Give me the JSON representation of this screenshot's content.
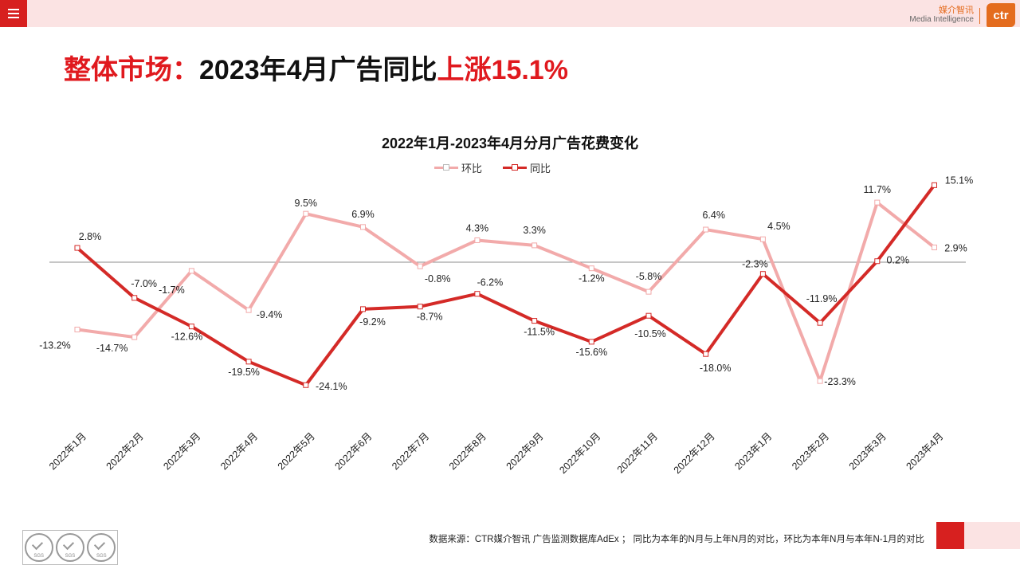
{
  "brand": {
    "cn": "媒介智讯",
    "en": "Media Intelligence",
    "logo_text": "ctr"
  },
  "title": {
    "prefix": "整体市场：",
    "main": "2023年4月广告同比",
    "highlight": "上涨15.1%"
  },
  "colors": {
    "accent": "#d7201f",
    "mom_line": "#f2aaaa",
    "yoy_line": "#d42a27",
    "title_red": "#e0191e"
  },
  "chart_data": {
    "type": "line",
    "title": "2022年1月-2023年4月分月广告花费变化",
    "categories": [
      "2022年1月",
      "2022年2月",
      "2022年3月",
      "2022年4月",
      "2022年5月",
      "2022年6月",
      "2022年7月",
      "2022年8月",
      "2022年9月",
      "2022年10月",
      "2022年11月",
      "2022年12月",
      "2023年1月",
      "2023年2月",
      "2023年3月",
      "2023年4月"
    ],
    "series": [
      {
        "name": "环比",
        "values": [
          -13.2,
          -14.7,
          -1.7,
          -9.4,
          9.5,
          6.9,
          -0.8,
          4.3,
          3.3,
          -1.2,
          -5.8,
          6.4,
          4.5,
          -23.3,
          11.7,
          2.9
        ]
      },
      {
        "name": "同比",
        "values": [
          2.8,
          -7.0,
          -12.6,
          -19.5,
          -24.1,
          -9.2,
          -8.7,
          -6.2,
          -11.5,
          -15.6,
          -10.5,
          -18.0,
          -2.3,
          -11.9,
          0.2,
          15.1
        ]
      }
    ],
    "labels": {
      "环比": [
        "-13.2%",
        "-14.7%",
        "-1.7%",
        "-9.4%",
        "9.5%",
        "6.9%",
        "-0.8%",
        "4.3%",
        "3.3%",
        "-1.2%",
        "-5.8%",
        "6.4%",
        "4.5%",
        "-23.3%",
        "11.7%",
        "2.9%"
      ],
      "同比": [
        "2.8%",
        "-7.0%",
        "-12.6%",
        "-19.5%",
        "-24.1%",
        "-9.2%",
        "-8.7%",
        "-6.2%",
        "-11.5%",
        "-15.6%",
        "-10.5%",
        "-18.0%",
        "-2.3%",
        "-11.9%",
        "0.2%",
        "15.1%"
      ]
    },
    "zero_line": true
  },
  "source": "数据来源：CTR媒介智讯 广告监测数据库AdEx ； 同比为本年的N月与上年N月的对比，环比为本年N月与本年N-1月的对比",
  "sgs_label": "SGS"
}
